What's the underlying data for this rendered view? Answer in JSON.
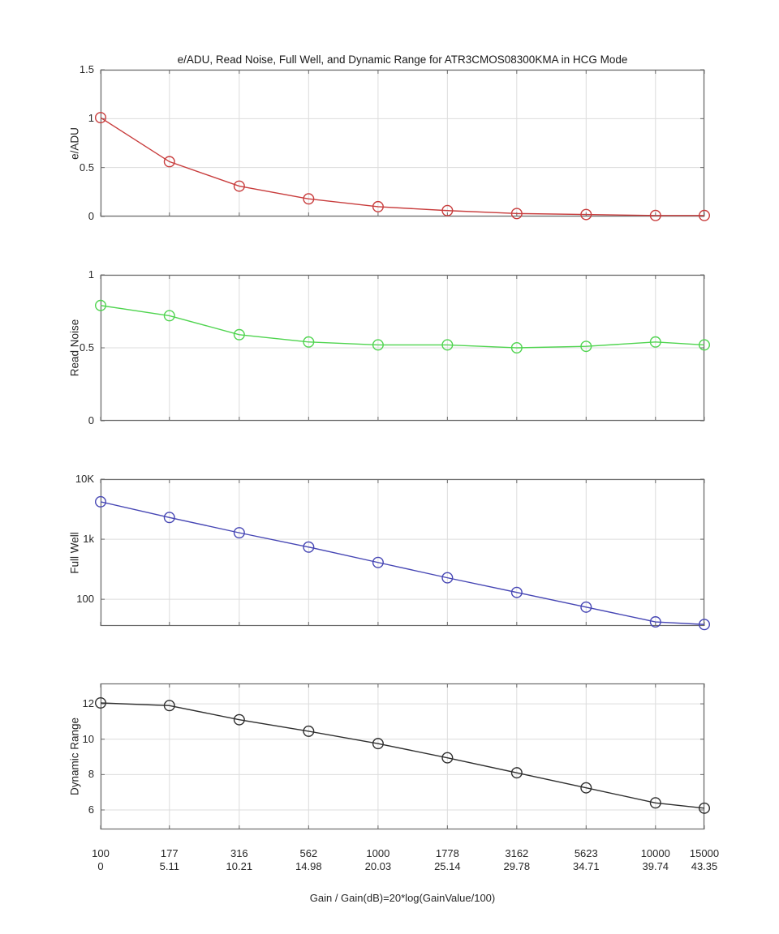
{
  "figure": {
    "title": "e/ADU, Read Noise, Full Well, and Dynamic Range for ATR3CMOS08300KMA in HCG Mode",
    "xlabel": "Gain / Gain(dB)=20*log(GainValue/100)"
  },
  "chart_data": {
    "type": "line",
    "title": "e/ADU, Read Noise, Full Well, and Dynamic Range for ATR3CMOS08300KMA in HCG Mode",
    "xlabel": "Gain / Gain(dB)=20*log(GainValue/100)",
    "x_scale": "log",
    "grid": true,
    "x_gain": [
      100,
      177,
      316,
      562,
      1000,
      1778,
      3162,
      5623,
      10000,
      15000
    ],
    "x_gain_labels": [
      "100",
      "177",
      "316",
      "562",
      "1000",
      "1778",
      "3162",
      "5623",
      "10000",
      "15000"
    ],
    "x_db_labels": [
      "0",
      "5.11",
      "10.21",
      "14.98",
      "20.03",
      "25.14",
      "29.78",
      "34.71",
      "39.74",
      "43.35"
    ],
    "subplots": [
      {
        "name": "e/ADU",
        "ylabel": "e/ADU",
        "color": "#c83c3c",
        "marker": "o",
        "yscale": "linear",
        "ylim": [
          0,
          1.5
        ],
        "yticks": [
          0,
          0.5,
          1,
          1.5
        ],
        "ytick_labels": [
          "0",
          "0.5",
          "1",
          "1.5"
        ],
        "values": [
          1.01,
          0.56,
          0.31,
          0.18,
          0.1,
          0.06,
          0.03,
          0.02,
          0.01,
          0.01
        ]
      },
      {
        "name": "Read Noise",
        "ylabel": "Read Noise",
        "color": "#4fd44f",
        "marker": "o",
        "yscale": "linear",
        "ylim": [
          0,
          1
        ],
        "yticks": [
          0,
          0.5,
          1
        ],
        "ytick_labels": [
          "0",
          "0.5",
          "1"
        ],
        "values": [
          0.79,
          0.72,
          0.59,
          0.54,
          0.52,
          0.52,
          0.5,
          0.51,
          0.54,
          0.52
        ]
      },
      {
        "name": "Full Well",
        "ylabel": "Full Well",
        "color": "#4646b4",
        "marker": "o",
        "yscale": "log",
        "ylim": [
          36,
          10000
        ],
        "yticks": [
          100,
          1000,
          10000
        ],
        "ytick_labels": [
          "100",
          "1k",
          "10K"
        ],
        "values": [
          4200,
          2300,
          1280,
          740,
          410,
          228,
          130,
          74,
          42,
          38
        ]
      },
      {
        "name": "Dynamic Range",
        "ylabel": "Dynamic Range",
        "color": "#2e2e2e",
        "marker": "o",
        "yscale": "linear",
        "ylim": [
          4.9,
          13.15
        ],
        "yticks": [
          6,
          8,
          10,
          12
        ],
        "ytick_labels": [
          "6",
          "8",
          "10",
          "12"
        ],
        "values": [
          12.05,
          11.9,
          11.1,
          10.45,
          9.75,
          8.95,
          8.1,
          7.25,
          6.4,
          6.1
        ]
      }
    ]
  }
}
